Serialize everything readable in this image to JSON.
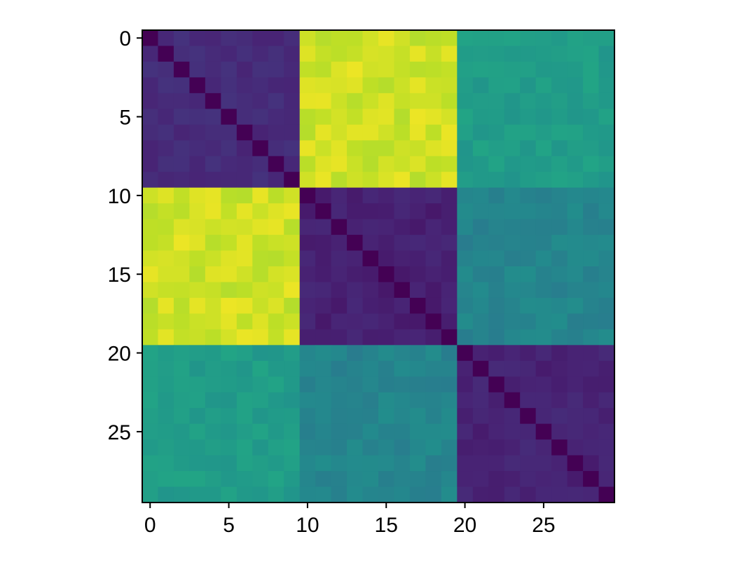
{
  "chart_data": {
    "type": "heatmap",
    "title": "",
    "xlabel": "",
    "ylabel": "",
    "colormap": "viridis",
    "n_rows": 30,
    "n_cols": 30,
    "xlim": [
      -0.5,
      29.5
    ],
    "ylim": [
      29.5,
      -0.5
    ],
    "x_ticks": [
      {
        "value": 0,
        "label": "0"
      },
      {
        "value": 5,
        "label": "5"
      },
      {
        "value": 10,
        "label": "10"
      },
      {
        "value": 15,
        "label": "15"
      },
      {
        "value": 20,
        "label": "20"
      },
      {
        "value": 25,
        "label": "25"
      }
    ],
    "y_ticks": [
      {
        "value": 0,
        "label": "0"
      },
      {
        "value": 5,
        "label": "5"
      },
      {
        "value": 10,
        "label": "10"
      },
      {
        "value": 15,
        "label": "15"
      },
      {
        "value": 20,
        "label": "20"
      },
      {
        "value": 25,
        "label": "25"
      }
    ],
    "blocks": [
      {
        "rows": [
          0,
          9
        ],
        "cols": [
          0,
          9
        ],
        "value": 0.12
      },
      {
        "rows": [
          0,
          9
        ],
        "cols": [
          10,
          19
        ],
        "value": 0.93
      },
      {
        "rows": [
          0,
          9
        ],
        "cols": [
          20,
          29
        ],
        "value": 0.55
      },
      {
        "rows": [
          10,
          19
        ],
        "cols": [
          0,
          9
        ],
        "value": 0.93
      },
      {
        "rows": [
          10,
          19
        ],
        "cols": [
          10,
          19
        ],
        "value": 0.09
      },
      {
        "rows": [
          10,
          19
        ],
        "cols": [
          20,
          29
        ],
        "value": 0.45
      },
      {
        "rows": [
          20,
          29
        ],
        "cols": [
          0,
          9
        ],
        "value": 0.55
      },
      {
        "rows": [
          20,
          29
        ],
        "cols": [
          10,
          19
        ],
        "value": 0.45
      },
      {
        "rows": [
          20,
          29
        ],
        "cols": [
          20,
          29
        ],
        "value": 0.1
      }
    ],
    "diagonal_value": 0.0,
    "grid": false,
    "legend": "none"
  }
}
